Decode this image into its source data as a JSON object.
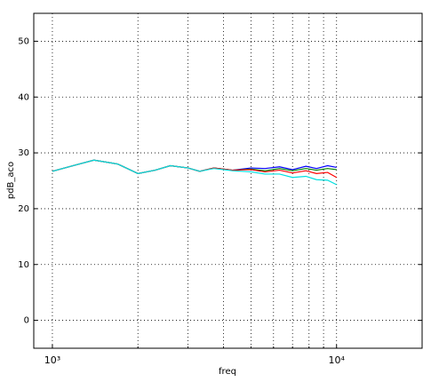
{
  "chart_data": {
    "type": "line",
    "x_label": "freq",
    "y_label": "pdB_aco",
    "log_x": true,
    "grid": true,
    "xlim": [
      860,
      20000
    ],
    "ylim": [
      -5,
      55
    ],
    "xticks": [
      {
        "value": 1000,
        "label": "10³"
      },
      {
        "value": 10000,
        "label": "10⁴"
      }
    ],
    "x_minor_grid": [
      2000,
      3000,
      4000,
      5000,
      6000,
      7000,
      8000,
      9000
    ],
    "yticks": [
      0,
      10,
      20,
      30,
      40,
      50
    ],
    "x": [
      1000,
      1200,
      1400,
      1700,
      2000,
      2300,
      2600,
      3000,
      3300,
      3700,
      4300,
      5000,
      5600,
      6300,
      7000,
      7800,
      8500,
      9300,
      10000
    ],
    "series": [
      {
        "color": "#0000ff",
        "values": [
          26.7,
          27.8,
          28.7,
          28.0,
          26.3,
          26.9,
          27.7,
          27.3,
          26.7,
          27.3,
          26.9,
          27.3,
          27.2,
          27.5,
          27.0,
          27.6,
          27.2,
          27.7,
          27.4
        ]
      },
      {
        "color": "#008000",
        "values": [
          26.7,
          27.8,
          28.7,
          28.0,
          26.3,
          26.9,
          27.7,
          27.3,
          26.7,
          27.3,
          26.9,
          27.1,
          26.8,
          27.2,
          26.8,
          27.2,
          26.9,
          27.2,
          27.0
        ]
      },
      {
        "color": "#ff0000",
        "values": [
          26.7,
          27.8,
          28.7,
          28.0,
          26.3,
          26.9,
          27.7,
          27.3,
          26.7,
          27.3,
          26.9,
          27.0,
          26.6,
          26.9,
          26.4,
          26.8,
          26.3,
          26.5,
          25.6
        ]
      },
      {
        "color": "#00e0e0",
        "values": [
          26.7,
          27.8,
          28.7,
          28.0,
          26.3,
          26.9,
          27.7,
          27.3,
          26.7,
          27.2,
          26.8,
          26.6,
          26.2,
          26.2,
          25.6,
          25.8,
          25.2,
          25.1,
          24.3
        ]
      }
    ]
  }
}
